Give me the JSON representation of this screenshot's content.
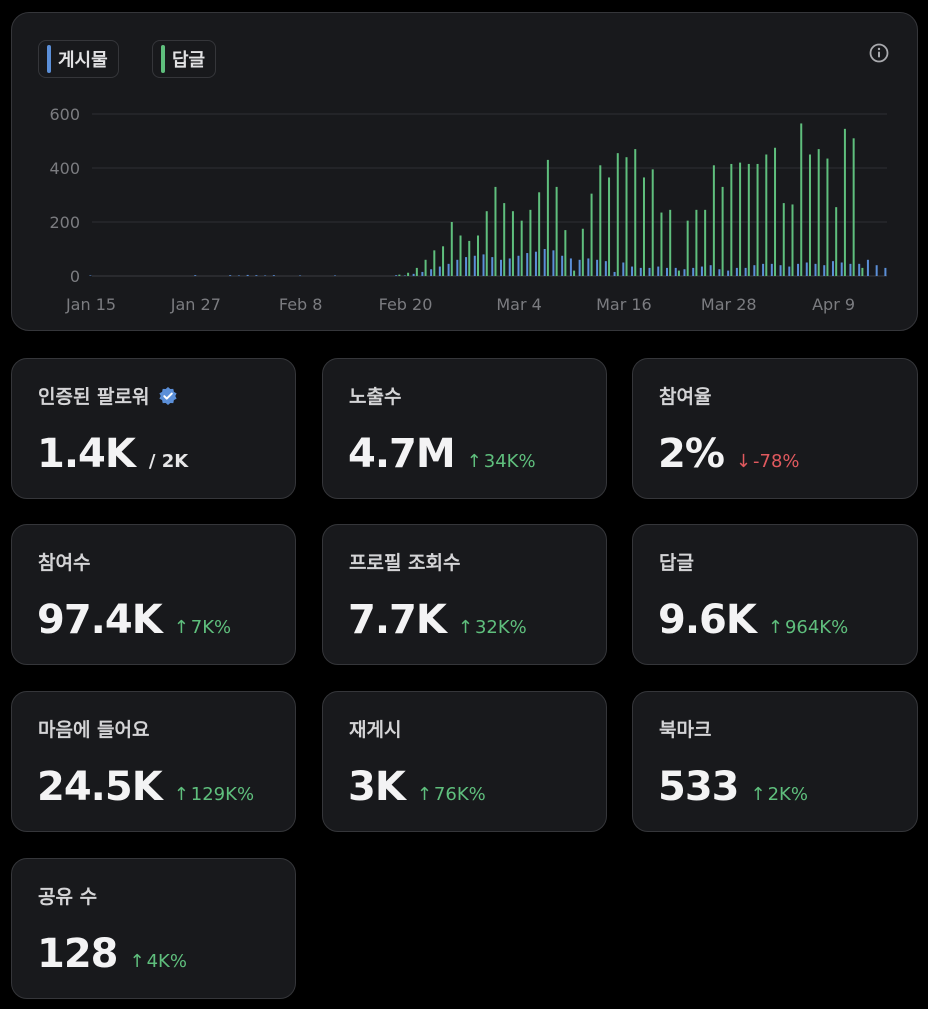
{
  "legend": {
    "posts_label": "게시물",
    "replies_label": "답글",
    "posts_color": "#5b8fd8",
    "replies_color": "#5fbf7d"
  },
  "chart_data": {
    "type": "bar",
    "x_ticks": [
      "Jan 15",
      "Jan 27",
      "Feb 8",
      "Feb 20",
      "Mar 4",
      "Mar 16",
      "Mar 28",
      "Apr 9"
    ],
    "y_ticks": [
      "600",
      "400",
      "200",
      "0"
    ],
    "ylim": [
      0,
      600
    ],
    "grid": true,
    "legend_position": "top-left",
    "dates": [
      "Jan 15",
      "Jan 16",
      "Jan 17",
      "Jan 18",
      "Jan 19",
      "Jan 20",
      "Jan 21",
      "Jan 22",
      "Jan 23",
      "Jan 24",
      "Jan 25",
      "Jan 26",
      "Jan 27",
      "Jan 28",
      "Jan 29",
      "Jan 30",
      "Jan 31",
      "Feb 1",
      "Feb 2",
      "Feb 3",
      "Feb 4",
      "Feb 5",
      "Feb 6",
      "Feb 7",
      "Feb 8",
      "Feb 9",
      "Feb 10",
      "Feb 11",
      "Feb 12",
      "Feb 13",
      "Feb 14",
      "Feb 15",
      "Feb 16",
      "Feb 17",
      "Feb 18",
      "Feb 19",
      "Feb 20",
      "Feb 21",
      "Feb 22",
      "Feb 23",
      "Feb 24",
      "Feb 25",
      "Feb 26",
      "Feb 27",
      "Feb 28",
      "Feb 29",
      "Mar 1",
      "Mar 2",
      "Mar 3",
      "Mar 4",
      "Mar 5",
      "Mar 6",
      "Mar 7",
      "Mar 8",
      "Mar 9",
      "Mar 10",
      "Mar 11",
      "Mar 12",
      "Mar 13",
      "Mar 14",
      "Mar 15",
      "Mar 16",
      "Mar 17",
      "Mar 18",
      "Mar 19",
      "Mar 20",
      "Mar 21",
      "Mar 22",
      "Mar 23",
      "Mar 24",
      "Mar 25",
      "Mar 26",
      "Mar 27",
      "Mar 28",
      "Mar 29",
      "Mar 30",
      "Mar 31",
      "Apr 1",
      "Apr 2",
      "Apr 3",
      "Apr 4",
      "Apr 5",
      "Apr 6",
      "Apr 7",
      "Apr 8",
      "Apr 9",
      "Apr 10",
      "Apr 11",
      "Apr 12",
      "Apr 13",
      "Apr 14",
      "Apr 15"
    ],
    "series": [
      {
        "name": "게시물",
        "values": [
          2,
          0,
          0,
          0,
          0,
          0,
          0,
          0,
          0,
          0,
          0,
          0,
          3,
          0,
          0,
          0,
          3,
          2,
          4,
          3,
          2,
          3,
          0,
          0,
          2,
          0,
          0,
          0,
          2,
          0,
          0,
          0,
          0,
          0,
          0,
          3,
          2,
          8,
          15,
          25,
          35,
          45,
          60,
          70,
          75,
          80,
          70,
          60,
          65,
          75,
          85,
          90,
          100,
          95,
          75,
          65,
          60,
          65,
          60,
          55,
          15,
          50,
          35,
          30,
          30,
          35,
          30,
          30,
          25,
          30,
          35,
          40,
          25,
          20,
          30,
          30,
          40,
          45,
          45,
          40,
          35,
          45,
          50,
          45,
          40,
          55,
          50,
          45,
          45,
          60,
          40,
          30
        ]
      },
      {
        "name": "답글",
        "values": [
          0,
          0,
          0,
          0,
          0,
          0,
          0,
          0,
          0,
          0,
          0,
          0,
          0,
          0,
          0,
          0,
          0,
          0,
          0,
          0,
          0,
          0,
          0,
          0,
          0,
          0,
          0,
          0,
          0,
          0,
          0,
          0,
          0,
          0,
          0,
          5,
          12,
          30,
          60,
          95,
          110,
          200,
          150,
          130,
          150,
          240,
          330,
          270,
          240,
          205,
          245,
          310,
          430,
          330,
          170,
          20,
          175,
          305,
          410,
          365,
          455,
          440,
          470,
          365,
          395,
          235,
          245,
          20,
          205,
          245,
          245,
          410,
          330,
          415,
          420,
          415,
          415,
          450,
          475,
          270,
          265,
          565,
          450,
          470,
          435,
          255,
          545,
          510,
          30,
          0,
          0,
          0
        ]
      }
    ]
  },
  "stats": [
    {
      "label": "인증된 팔로워",
      "value": "1.4K",
      "suffix": "/ 2K",
      "verified": true
    },
    {
      "label": "노출수",
      "value": "4.7M",
      "delta": "34K%",
      "direction": "up"
    },
    {
      "label": "참여율",
      "value": "2%",
      "delta": "-78%",
      "direction": "down"
    },
    {
      "label": "참여수",
      "value": "97.4K",
      "delta": "7K%",
      "direction": "up"
    },
    {
      "label": "프로필 조회수",
      "value": "7.7K",
      "delta": "32K%",
      "direction": "up"
    },
    {
      "label": "답글",
      "value": "9.6K",
      "delta": "964K%",
      "direction": "up"
    },
    {
      "label": "마음에 들어요",
      "value": "24.5K",
      "delta": "129K%",
      "direction": "up"
    },
    {
      "label": "재게시",
      "value": "3K",
      "delta": "76K%",
      "direction": "up"
    },
    {
      "label": "북마크",
      "value": "533",
      "delta": "2K%",
      "direction": "up"
    },
    {
      "label": "공유 수",
      "value": "128",
      "delta": "4K%",
      "direction": "up"
    }
  ],
  "icons": {
    "info": "info-icon",
    "verified": "verified-badge-icon",
    "up": "arrow-up-icon",
    "down": "arrow-down-icon"
  }
}
